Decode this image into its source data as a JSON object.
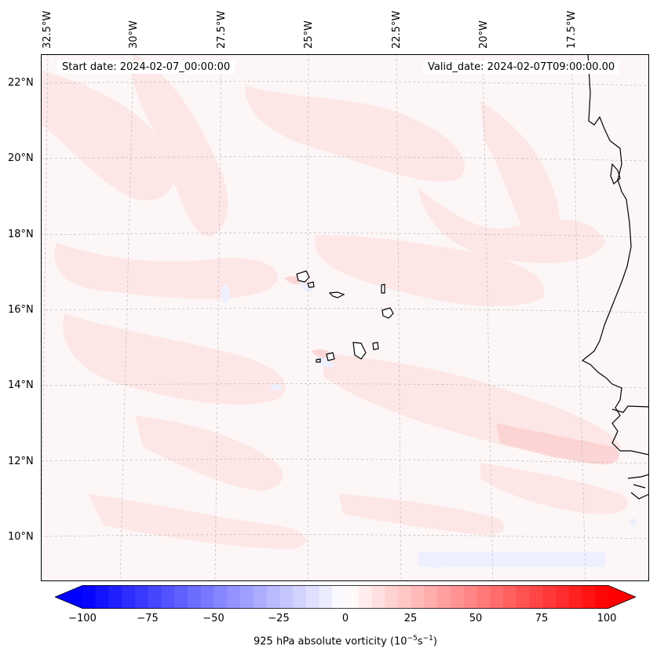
{
  "map": {
    "title_left": "Start date: 2024-02-07_00:00:00",
    "title_right": "Valid_date: 2024-02-07T09:00:00.00",
    "field": "925 hPa absolute vorticity",
    "colors": {
      "background": "#fdf6f6",
      "light_red": "#fde8e8",
      "mid_red": "#fcd6d6",
      "light_blue": "#eef0ff",
      "coast": "#000000",
      "grid": "#bbbbbb"
    },
    "longitude_labels": [
      "32.5°W",
      "30°W",
      "27.5°W",
      "25°W",
      "22.5°W",
      "20°W",
      "17.5°W"
    ],
    "latitude_labels": [
      "22°N",
      "20°N",
      "18°N",
      "16°N",
      "14°N",
      "12°N",
      "10°N"
    ]
  },
  "colorbar": {
    "label_main": "925 hPa absolute vorticity (10",
    "label_exp1": "−5",
    "label_mid": "s",
    "label_exp2": "−1",
    "label_end": ")",
    "min": -100,
    "max": 100,
    "step": 5,
    "ticks": [
      "−100",
      "−75",
      "−50",
      "−25",
      "0",
      "25",
      "50",
      "75",
      "100"
    ],
    "colormap": "bwr",
    "extend": "both"
  }
}
